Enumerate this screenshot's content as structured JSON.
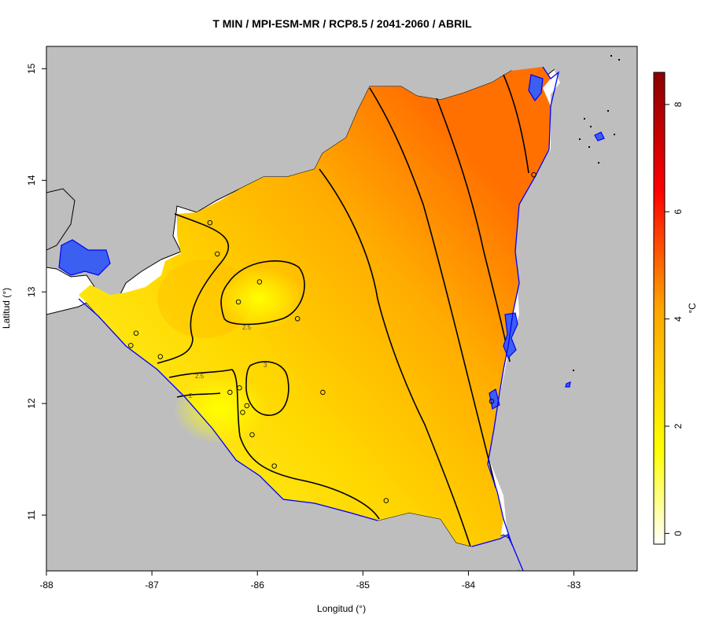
{
  "title": "T MIN / MPI-ESM-MR / RCP8.5 / 2041-2060 / ABRIL",
  "xlabel": "Longitud (°)",
  "ylabel": "Latitud (°)",
  "colorbar": {
    "unit": "°C",
    "range": [
      -0.2,
      8.6
    ],
    "ticks": [
      "0",
      "2",
      "4",
      "6",
      "8"
    ],
    "tick_values": [
      0,
      2,
      4,
      6,
      8
    ]
  },
  "chart_data": {
    "type": "heatmap",
    "title": "T MIN / MPI-ESM-MR / RCP8.5 / 2041-2060 / ABRIL",
    "xlabel": "Longitud (°)",
    "ylabel": "Latitud (°)",
    "xlim": [
      -88,
      -82.4
    ],
    "ylim": [
      10.5,
      15.2
    ],
    "x_ticks": [
      "-88",
      "-87",
      "-86",
      "-85",
      "-84",
      "-83"
    ],
    "x_tick_values": [
      -88,
      -87,
      -86,
      -85,
      -84,
      -83
    ],
    "y_ticks": [
      "11",
      "12",
      "13",
      "14",
      "15"
    ],
    "y_tick_values": [
      11,
      12,
      13,
      14,
      15
    ],
    "contour_labels": [
      "2.5",
      "2.5",
      "3",
      "2"
    ],
    "stations": [
      {
        "lon": -86.45,
        "lat": 13.62
      },
      {
        "lon": -86.38,
        "lat": 13.34
      },
      {
        "lon": -85.98,
        "lat": 13.09
      },
      {
        "lon": -86.18,
        "lat": 12.91
      },
      {
        "lon": -85.62,
        "lat": 12.76
      },
      {
        "lon": -87.15,
        "lat": 12.63
      },
      {
        "lon": -87.2,
        "lat": 12.52
      },
      {
        "lon": -86.92,
        "lat": 12.42
      },
      {
        "lon": -86.17,
        "lat": 12.14
      },
      {
        "lon": -86.26,
        "lat": 12.1
      },
      {
        "lon": -85.38,
        "lat": 12.1
      },
      {
        "lon": -86.1,
        "lat": 11.98
      },
      {
        "lon": -86.14,
        "lat": 11.92
      },
      {
        "lon": -86.05,
        "lat": 11.72
      },
      {
        "lon": -85.84,
        "lat": 11.44
      },
      {
        "lon": -84.78,
        "lat": 11.13
      },
      {
        "lon": -83.78,
        "lat": 12.02
      },
      {
        "lon": -83.38,
        "lat": 14.05
      }
    ],
    "colors": {
      "land": "#bebebe",
      "water": "#3b5ff0",
      "coast": "#0000ff",
      "low": "#ffff00",
      "high": "#ff6a00"
    }
  }
}
